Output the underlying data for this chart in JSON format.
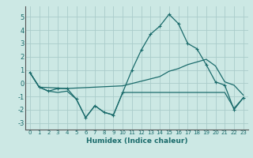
{
  "xlabel": "Humidex (Indice chaleur)",
  "ylabel": "",
  "bg_color": "#cce8e4",
  "grid_color": "#aaccca",
  "line_color": "#1a6b6b",
  "xlim": [
    -0.5,
    23.5
  ],
  "ylim": [
    -3.5,
    5.8
  ],
  "yticks": [
    -3,
    -2,
    -1,
    0,
    1,
    2,
    3,
    4,
    5
  ],
  "xticks": [
    0,
    1,
    2,
    3,
    4,
    5,
    6,
    7,
    8,
    9,
    10,
    11,
    12,
    13,
    14,
    15,
    16,
    17,
    18,
    19,
    20,
    21,
    22,
    23
  ],
  "series": [
    {
      "x": [
        0,
        1,
        2,
        3,
        4,
        5,
        6,
        7,
        8,
        9,
        10,
        11,
        12,
        13,
        14,
        15,
        16,
        17,
        18,
        19,
        20,
        21,
        22,
        23
      ],
      "y": [
        0.8,
        -0.3,
        -0.6,
        -0.7,
        -0.6,
        -1.2,
        -2.6,
        -1.7,
        -2.2,
        -2.4,
        -0.7,
        -0.7,
        -0.7,
        -0.7,
        -0.7,
        -0.7,
        -0.7,
        -0.7,
        -0.7,
        -0.7,
        -0.7,
        -0.7,
        -1.9,
        -1.1
      ],
      "marker": null,
      "lw": 0.9
    },
    {
      "x": [
        0,
        1,
        2,
        3,
        4,
        5,
        6,
        7,
        8,
        9,
        10,
        11,
        12,
        13,
        14,
        15,
        16,
        17,
        18,
        19,
        20,
        21,
        22,
        23
      ],
      "y": [
        0.8,
        -0.3,
        -0.6,
        -0.4,
        -0.4,
        -1.2,
        -2.6,
        -1.7,
        -2.2,
        -2.4,
        -0.7,
        1.0,
        2.5,
        3.7,
        4.3,
        5.2,
        4.5,
        3.0,
        2.6,
        1.4,
        0.1,
        -0.15,
        -2.0,
        -1.1
      ],
      "marker": "+",
      "lw": 0.9
    },
    {
      "x": [
        0,
        1,
        4,
        10,
        14,
        15,
        16,
        17,
        18,
        19,
        20,
        21,
        22,
        23
      ],
      "y": [
        0.8,
        -0.3,
        -0.4,
        -0.2,
        0.5,
        0.9,
        1.1,
        1.4,
        1.6,
        1.8,
        1.3,
        0.1,
        -0.15,
        -0.9
      ],
      "marker": null,
      "lw": 0.9
    }
  ]
}
